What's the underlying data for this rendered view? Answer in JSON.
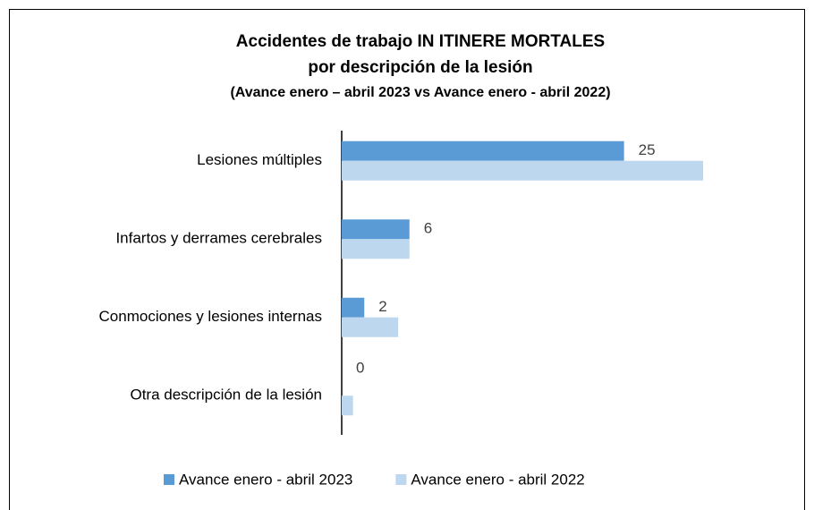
{
  "chart_data": {
    "type": "hbar",
    "title": "Accidentes de trabajo IN ITINERE MORTALES",
    "subtitle": "por descripción de la lesión",
    "subtitle2": "(Avance enero – abril 2023 vs Avance enero - abril 2022)",
    "categories": [
      "Lesiones múltiples",
      "Infartos y derrames cerebrales",
      "Conmociones y lesiones internas",
      "Otra descripción de la lesión"
    ],
    "series": [
      {
        "name": "Avance enero - abril 2023",
        "color": "#5b9bd5",
        "values": [
          25,
          6,
          2,
          0
        ],
        "labels": true
      },
      {
        "name": "Avance enero - abril 2022",
        "color": "#bdd7ee",
        "values": [
          32,
          6,
          5,
          1
        ],
        "labels": false
      }
    ],
    "legend": "bottom"
  }
}
